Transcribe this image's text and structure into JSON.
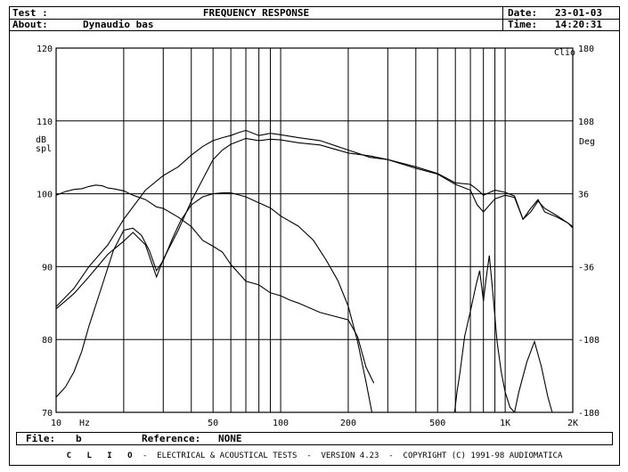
{
  "header": {
    "test_label": "Test :",
    "title": "FREQUENCY RESPONSE",
    "date_label": "Date:",
    "date_value": "23-01-03",
    "about_label": "About:",
    "about_value": "Dynaudio bas",
    "time_label": "Time:",
    "time_value": "14:20:31"
  },
  "file_box": {
    "file_label": "File:",
    "file_value": "b",
    "reference_label": "Reference:",
    "reference_value": "NONE"
  },
  "footer": {
    "brand": "C L I O",
    "text": " -  ELECTRICAL & ACOUSTICAL TESTS  -  VERSION 4.23  -  COPYRIGHT (C) 1991-98 AUDIOMATICA"
  },
  "chart_data": {
    "type": "line",
    "title": "FREQUENCY RESPONSE",
    "corner_label": "Clio",
    "x_scale": "log",
    "xlim": [
      10,
      2000
    ],
    "xlabel": "Hz",
    "x_ticks": [
      {
        "value": 10,
        "label": "10"
      },
      {
        "value": 50,
        "label": "50"
      },
      {
        "value": 100,
        "label": "100"
      },
      {
        "value": 200,
        "label": "200"
      },
      {
        "value": 500,
        "label": "500"
      },
      {
        "value": 1000,
        "label": "1K"
      },
      {
        "value": 2000,
        "label": "2K"
      }
    ],
    "ylim": [
      70,
      120
    ],
    "ylabel": "dB\nspl",
    "y_ticks": [
      70,
      80,
      90,
      100,
      110,
      120
    ],
    "y2lim": [
      -180,
      180
    ],
    "y2label": "Deg",
    "y2_ticks": [
      -180,
      -108,
      -36,
      36,
      108,
      180
    ],
    "grid": true,
    "series": [
      {
        "x": [
          10,
          12,
          14,
          17,
          20,
          25,
          30,
          35,
          40,
          45,
          50,
          55,
          60,
          65,
          70,
          80,
          90,
          100,
          120,
          150,
          200,
          250,
          300,
          400,
          500,
          600,
          700,
          750,
          800,
          900,
          1000,
          1100,
          1200,
          1300,
          1400,
          1500,
          1700,
          1900,
          2000
        ],
        "y": [
          84.5,
          87,
          90,
          93,
          96.5,
          100.5,
          102.5,
          103.7,
          105.3,
          106.5,
          107.3,
          107.7,
          108,
          108.4,
          108.7,
          108,
          108.3,
          108.1,
          107.7,
          107.3,
          106,
          105,
          104.7,
          103.7,
          102.8,
          101.5,
          101.3,
          100.6,
          99.8,
          100.5,
          100.2,
          99.7,
          96.5,
          97.5,
          99,
          98,
          97,
          96,
          95.3
        ]
      },
      {
        "x": [
          10,
          12,
          14,
          17,
          20,
          22,
          25,
          28,
          30,
          35,
          40,
          45,
          50,
          55,
          60,
          70,
          80,
          90,
          100,
          120,
          150,
          200,
          250,
          300,
          400,
          500,
          600,
          700,
          750,
          800,
          900,
          1000,
          1100,
          1200,
          1300,
          1400,
          1500,
          1700,
          1900,
          2000
        ],
        "y": [
          84.2,
          86.3,
          88.6,
          91.7,
          93.5,
          94.7,
          93,
          88.6,
          91,
          95,
          99,
          102,
          104.7,
          106,
          106.8,
          107.6,
          107.3,
          107.5,
          107.4,
          107,
          106.7,
          105.6,
          105.2,
          104.7,
          103.5,
          102.7,
          101.3,
          100.5,
          98.5,
          97.5,
          99.3,
          99.8,
          99.5,
          96.5,
          98,
          99.2,
          97.5,
          96.8,
          96,
          95.5
        ]
      },
      {
        "x": [
          10,
          11,
          12,
          13,
          14,
          15,
          16,
          17,
          18,
          20,
          22,
          25,
          28,
          30,
          35,
          40,
          45,
          50,
          55,
          60,
          70,
          80,
          90,
          100,
          110,
          120,
          150,
          200,
          220,
          240,
          260
        ],
        "y": [
          99.8,
          100.3,
          100.6,
          100.7,
          101,
          101.2,
          101.1,
          100.8,
          100.7,
          100.4,
          99.8,
          99.2,
          98.2,
          98,
          96.8,
          95.5,
          93.6,
          92.8,
          92,
          90.3,
          88,
          87.5,
          86.4,
          86,
          85.4,
          85,
          83.7,
          82.7,
          80.4,
          76.2,
          74
        ]
      },
      {
        "x": [
          10,
          11,
          12,
          13,
          14,
          16,
          18,
          20,
          22,
          24,
          26,
          28,
          30,
          33,
          36,
          40,
          45,
          50,
          55,
          60,
          70,
          80,
          90,
          100,
          120,
          140,
          160,
          180,
          200,
          220,
          240,
          255
        ],
        "y": [
          -165,
          -155,
          -140,
          -120,
          -95,
          -55,
          -20,
          0,
          2,
          -5,
          -20,
          -40,
          -30,
          -8,
          10,
          25,
          33,
          36,
          37,
          37,
          33,
          27,
          22,
          14,
          4,
          -10,
          -30,
          -50,
          -75,
          -110,
          -150,
          -180
        ]
      },
      {
        "x": [
          595,
          610,
          630,
          660,
          700,
          740,
          770,
          800,
          820,
          850,
          880,
          920,
          960,
          1000,
          1050,
          1100,
          1150,
          1250,
          1350,
          1450,
          1550,
          1620
        ],
        "y": [
          -180,
          -160,
          -140,
          -105,
          -80,
          -55,
          -40,
          -70,
          -50,
          -25,
          -60,
          -110,
          -140,
          -160,
          -175,
          -180,
          -160,
          -130,
          -110,
          -135,
          -165,
          -180
        ]
      }
    ]
  }
}
